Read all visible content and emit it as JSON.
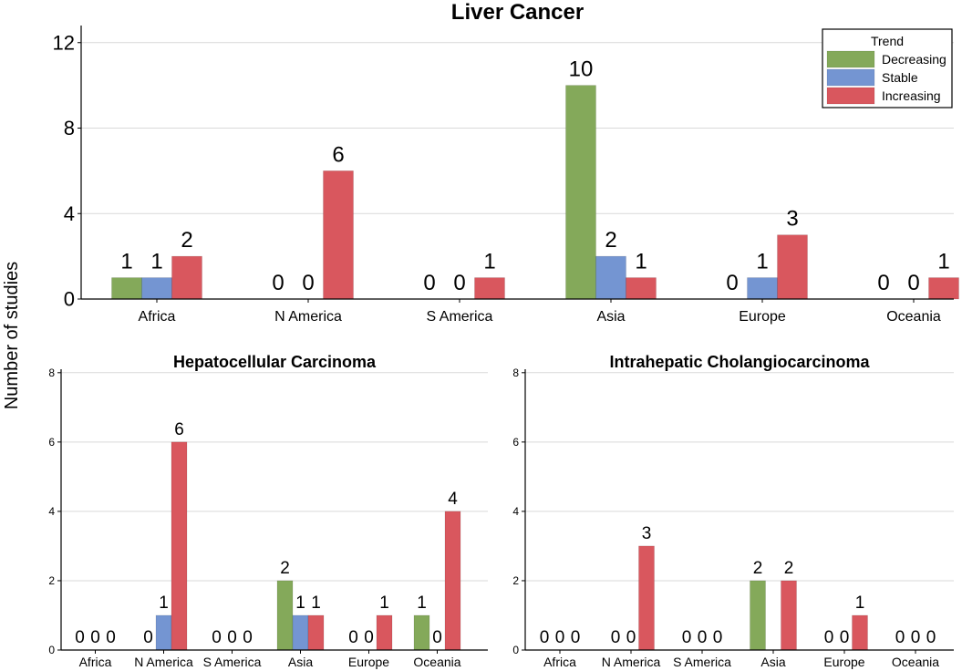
{
  "y_axis_label": "Number of studies",
  "legend": {
    "title": "Trend",
    "items": [
      {
        "label": "Decreasing",
        "color": "#84a95a"
      },
      {
        "label": "Stable",
        "color": "#7495d2"
      },
      {
        "label": "Increasing",
        "color": "#d9575e"
      }
    ]
  },
  "chart_data": [
    {
      "type": "bar",
      "title": "Liver Cancer",
      "xlabel": "",
      "ylabel": "Number of studies",
      "ylim": [
        0,
        12.8
      ],
      "yticks": [
        0,
        4,
        8,
        12
      ],
      "categories": [
        "Africa",
        "N America",
        "S America",
        "Asia",
        "Europe",
        "Oceania"
      ],
      "series": [
        {
          "name": "Decreasing",
          "values": [
            1,
            0,
            0,
            10,
            0,
            0
          ]
        },
        {
          "name": "Stable",
          "values": [
            1,
            0,
            0,
            2,
            1,
            0
          ]
        },
        {
          "name": "Increasing",
          "values": [
            2,
            6,
            1,
            1,
            3,
            1
          ]
        }
      ]
    },
    {
      "type": "bar",
      "title": "Hepatocellular Carcinoma",
      "xlabel": "",
      "ylabel": "Number of studies",
      "ylim": [
        0,
        8.1
      ],
      "yticks": [
        0,
        2,
        4,
        6,
        8
      ],
      "categories": [
        "Africa",
        "N America",
        "S America",
        "Asia",
        "Europe",
        "Oceania"
      ],
      "series": [
        {
          "name": "Decreasing",
          "values": [
            0,
            0,
            0,
            2,
            0,
            1
          ]
        },
        {
          "name": "Stable",
          "values": [
            0,
            1,
            0,
            1,
            0,
            0
          ]
        },
        {
          "name": "Increasing",
          "values": [
            0,
            6,
            0,
            1,
            1,
            4
          ]
        }
      ]
    },
    {
      "type": "bar",
      "title": "Intrahepatic Cholangiocarcinoma",
      "xlabel": "",
      "ylabel": "Number of studies",
      "ylim": [
        0,
        8.1
      ],
      "yticks": [
        0,
        2,
        4,
        6,
        8
      ],
      "categories": [
        "Africa",
        "N America",
        "S America",
        "Asia",
        "Europe",
        "Oceania"
      ],
      "series": [
        {
          "name": "Decreasing",
          "values": [
            0,
            0,
            0,
            2,
            0,
            0
          ]
        },
        {
          "name": "Stable",
          "values": [
            0,
            0,
            0,
            0,
            0,
            0
          ]
        },
        {
          "name": "Increasing",
          "values": [
            0,
            3,
            0,
            2,
            1,
            0
          ]
        }
      ]
    }
  ]
}
